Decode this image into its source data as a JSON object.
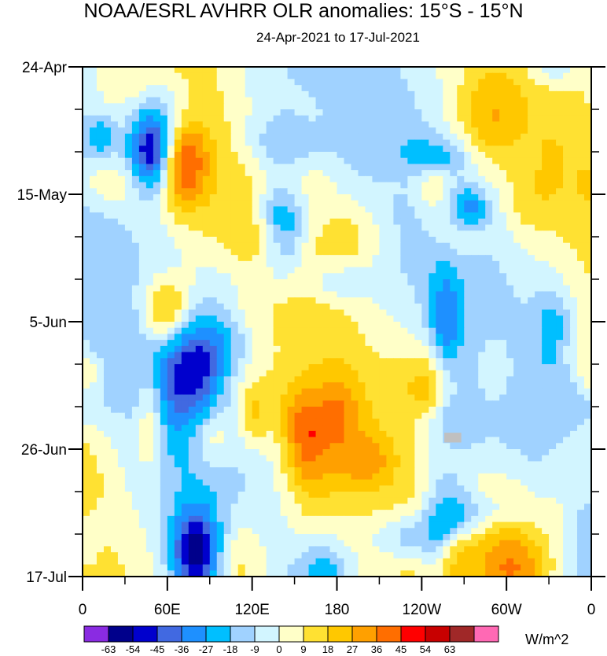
{
  "chart_data": {
    "type": "heatmap",
    "title": "NOAA/ESRL AVHRR OLR anomalies: 15°S - 15°N",
    "subtitle": "24-Apr-2021 to 17-Jul-2021",
    "xlabel": "",
    "ylabel": "",
    "x_ticks": [
      "0",
      "60E",
      "120E",
      "180",
      "120W",
      "60W",
      "0"
    ],
    "x_tick_values": [
      0,
      60,
      120,
      180,
      240,
      300,
      360
    ],
    "y_ticks": [
      "24-Apr",
      "15-May",
      "5-Jun",
      "26-Jun",
      "17-Jul"
    ],
    "y_tick_days": [
      0,
      21,
      42,
      63,
      84
    ],
    "xlim": [
      0,
      360
    ],
    "ylim_days": [
      0,
      84
    ],
    "colorbar": {
      "units": "W/m^2",
      "labels": [
        "-63",
        "-54",
        "-45",
        "-36",
        "-27",
        "-18",
        "-9",
        "0",
        "9",
        "18",
        "27",
        "36",
        "45",
        "54",
        "63"
      ],
      "colors": [
        "#8a2be2",
        "#00008b",
        "#0000cd",
        "#4169e1",
        "#1e90ff",
        "#00bfff",
        "#a0d2ff",
        "#d2f5ff",
        "#ffffc8",
        "#ffe132",
        "#ffc800",
        "#ffa000",
        "#ff6e00",
        "#ff0000",
        "#c80000",
        "#a02828",
        "#ff69b4"
      ]
    },
    "missing_color": "#c0c0c0",
    "anomaly_features": [
      {
        "name": "negative anomaly Indian Ocean",
        "lon": 50,
        "day": 14,
        "value": -63
      },
      {
        "name": "positive anomaly",
        "lon": 70,
        "day": 16,
        "value": 45
      },
      {
        "name": "positive anomaly west Indian Ocean",
        "lon": 60,
        "day": 40,
        "value": 40
      },
      {
        "name": "negative anomaly Maritime Continent",
        "lon": 140,
        "day": 27,
        "value": -50
      },
      {
        "name": "negative anomaly Indian Ocean late",
        "lon": 80,
        "day": 80,
        "value": -55
      },
      {
        "name": "positive anomaly west Pacific",
        "lon": 160,
        "day": 63,
        "value": 30
      }
    ]
  }
}
